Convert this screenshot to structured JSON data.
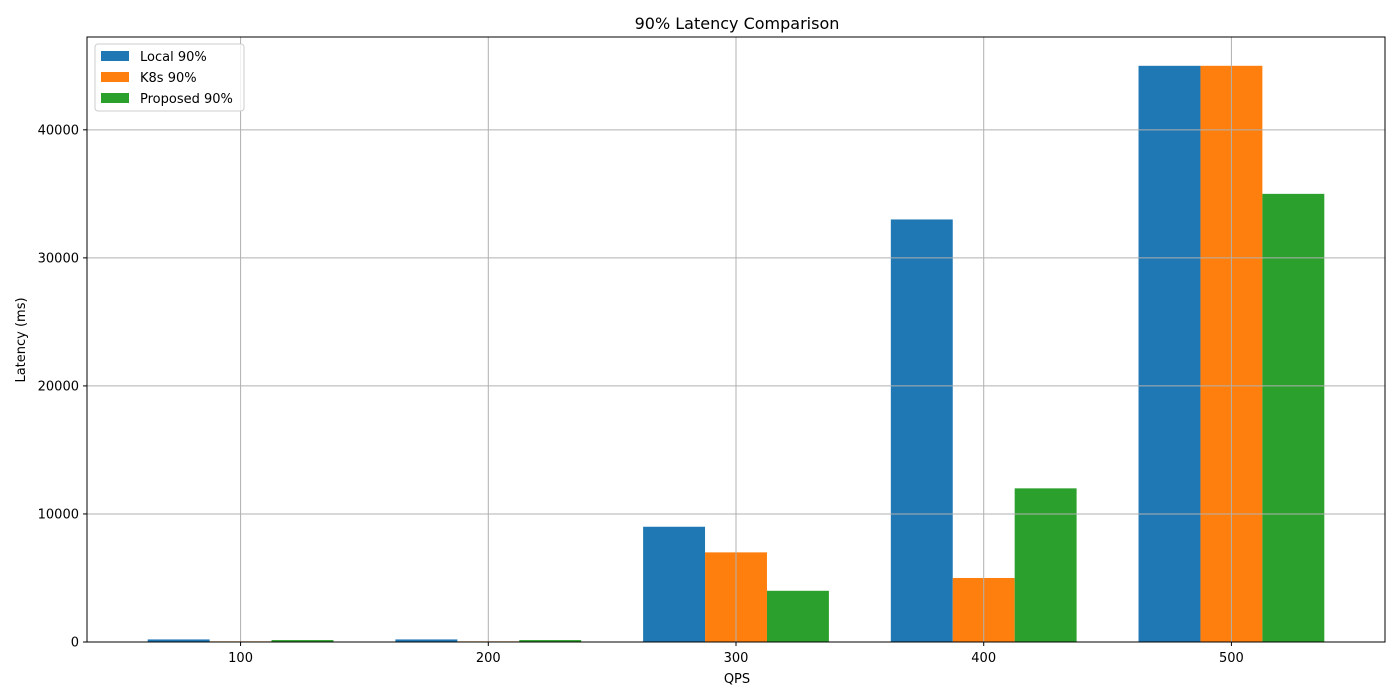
{
  "chart_data": {
    "type": "bar",
    "title": "90% Latency Comparison",
    "xlabel": "QPS",
    "ylabel": "Latency (ms)",
    "categories": [
      "100",
      "200",
      "300",
      "400",
      "500"
    ],
    "yticks": [
      0,
      10000,
      20000,
      30000,
      40000
    ],
    "ylim": [
      0,
      47250
    ],
    "grid": true,
    "legend_position": "top-left",
    "series": [
      {
        "name": "Local 90%",
        "color": "#1f77b4",
        "values": [
          200,
          200,
          9000,
          33000,
          45000
        ]
      },
      {
        "name": "K8s 90%",
        "color": "#ff7f0e",
        "values": [
          50,
          50,
          7000,
          5000,
          45000
        ]
      },
      {
        "name": "Proposed 90%",
        "color": "#2ca02c",
        "values": [
          150,
          150,
          4000,
          12000,
          35000
        ]
      }
    ]
  }
}
